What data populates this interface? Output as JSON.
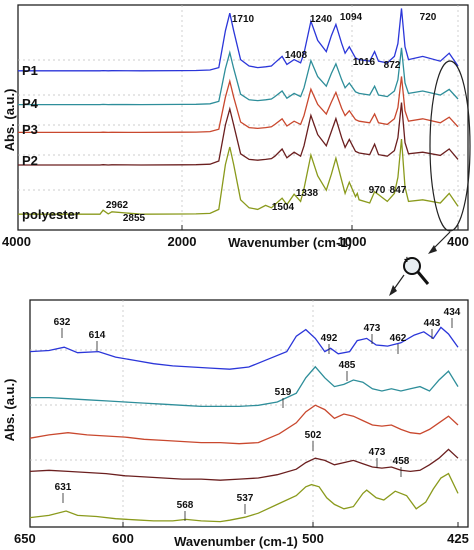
{
  "colors": {
    "P1": "#2b36d9",
    "P4": "#2e8e9a",
    "P3": "#c9482e",
    "P2": "#6b1f1f",
    "polyester": "#8a9a1c"
  },
  "chart_data": [
    {
      "type": "line",
      "title": "",
      "xlabel": "Wavenumber (cm-1)",
      "ylabel": "Abs. (a.u.)",
      "xlim": [
        4000,
        400
      ],
      "x_reversed": true,
      "x_ticks": [
        "4000",
        "2000",
        "1000",
        "400"
      ],
      "grid": true,
      "series": [
        {
          "name": "P1",
          "x": [
            4000,
            3500,
            3000,
            2962,
            2900,
            2855,
            2500,
            2000,
            1900,
            1800,
            1760,
            1730,
            1710,
            1690,
            1650,
            1600,
            1550,
            1504,
            1470,
            1450,
            1408,
            1380,
            1338,
            1300,
            1280,
            1240,
            1200,
            1150,
            1120,
            1094,
            1060,
            1040,
            1016,
            980,
            960,
            900,
            872,
            850,
            800,
            760,
            740,
            720,
            700,
            680,
            600,
            500,
            450,
            400
          ],
          "y": [
            0.7,
            0.7,
            0.7,
            0.71,
            0.7,
            0.705,
            0.7,
            0.71,
            0.72,
            0.75,
            0.9,
            3.2,
            4.3,
            3.2,
            1.4,
            1.0,
            0.9,
            0.95,
            1.0,
            1.2,
            1.6,
            1.1,
            1.4,
            1.2,
            1.8,
            3.8,
            2.6,
            1.9,
            2.9,
            3.6,
            2.4,
            1.8,
            2.2,
            1.5,
            1.4,
            1.3,
            1.9,
            1.3,
            1.2,
            1.6,
            2.4,
            4.6,
            2.2,
            1.4,
            1.6,
            1.3,
            1.8,
            1.0
          ]
        },
        {
          "name": "P4",
          "x": [
            4000,
            3500,
            3000,
            2962,
            2900,
            2855,
            2500,
            2000,
            1900,
            1800,
            1760,
            1730,
            1710,
            1690,
            1650,
            1600,
            1550,
            1504,
            1470,
            1450,
            1408,
            1380,
            1338,
            1300,
            1280,
            1240,
            1200,
            1150,
            1120,
            1094,
            1060,
            1040,
            1016,
            980,
            960,
            900,
            872,
            850,
            800,
            760,
            740,
            720,
            700,
            680,
            600,
            500,
            450,
            400
          ],
          "y": [
            0.65,
            0.65,
            0.65,
            0.66,
            0.65,
            0.655,
            0.65,
            0.66,
            0.67,
            0.7,
            0.85,
            2.9,
            3.9,
            2.9,
            1.3,
            0.95,
            0.9,
            0.95,
            1.0,
            1.15,
            1.5,
            1.05,
            1.35,
            1.15,
            1.7,
            3.4,
            2.4,
            1.8,
            2.6,
            3.2,
            2.2,
            1.7,
            2.0,
            1.45,
            1.35,
            1.25,
            1.8,
            1.25,
            1.15,
            1.5,
            2.2,
            4.2,
            2.0,
            1.35,
            1.5,
            1.25,
            1.6,
            1.0
          ]
        },
        {
          "name": "P3",
          "x": [
            4000,
            3500,
            3000,
            2962,
            2900,
            2855,
            2500,
            2000,
            1900,
            1800,
            1760,
            1730,
            1710,
            1690,
            1650,
            1600,
            1550,
            1504,
            1470,
            1450,
            1408,
            1380,
            1338,
            1300,
            1280,
            1240,
            1200,
            1150,
            1120,
            1094,
            1060,
            1040,
            1016,
            980,
            960,
            900,
            872,
            850,
            800,
            760,
            740,
            720,
            700,
            680,
            600,
            500,
            450,
            400
          ],
          "y": [
            0.6,
            0.6,
            0.6,
            0.61,
            0.6,
            0.605,
            0.6,
            0.61,
            0.62,
            0.65,
            0.8,
            2.8,
            3.8,
            2.8,
            1.25,
            0.9,
            0.85,
            0.9,
            0.95,
            1.1,
            1.45,
            1.0,
            1.3,
            1.1,
            1.65,
            3.3,
            2.35,
            1.75,
            2.5,
            3.1,
            2.1,
            1.65,
            1.95,
            1.4,
            1.3,
            1.2,
            1.75,
            1.2,
            1.1,
            1.45,
            2.15,
            4.1,
            1.95,
            1.3,
            1.45,
            1.2,
            1.55,
            0.95
          ]
        },
        {
          "name": "P2",
          "x": [
            4000,
            3500,
            3000,
            2962,
            2900,
            2855,
            2500,
            2000,
            1900,
            1800,
            1760,
            1730,
            1710,
            1690,
            1650,
            1600,
            1550,
            1504,
            1470,
            1450,
            1408,
            1380,
            1338,
            1300,
            1280,
            1240,
            1200,
            1150,
            1120,
            1094,
            1060,
            1040,
            1016,
            980,
            960,
            900,
            872,
            850,
            800,
            760,
            740,
            720,
            700,
            680,
            600,
            500,
            450,
            400
          ],
          "y": [
            0.5,
            0.5,
            0.5,
            0.52,
            0.5,
            0.51,
            0.5,
            0.51,
            0.52,
            0.55,
            0.75,
            3.0,
            4.0,
            3.0,
            1.2,
            0.85,
            0.8,
            0.85,
            0.9,
            1.05,
            1.5,
            0.95,
            1.3,
            1.05,
            1.7,
            3.6,
            2.4,
            1.7,
            2.6,
            3.4,
            2.2,
            1.6,
            2.1,
            1.35,
            1.25,
            1.15,
            1.8,
            1.15,
            1.05,
            1.4,
            2.2,
            4.4,
            1.9,
            1.2,
            1.3,
            1.1,
            1.5,
            0.85
          ]
        },
        {
          "name": "polyester",
          "x": [
            4000,
            3500,
            3000,
            2962,
            2900,
            2855,
            2500,
            2000,
            1900,
            1800,
            1760,
            1730,
            1710,
            1690,
            1650,
            1600,
            1550,
            1504,
            1470,
            1450,
            1408,
            1380,
            1338,
            1300,
            1280,
            1240,
            1200,
            1150,
            1120,
            1094,
            1060,
            1040,
            1016,
            980,
            970,
            960,
            900,
            872,
            847,
            800,
            760,
            740,
            720,
            700,
            680,
            600,
            500,
            450,
            400
          ],
          "y": [
            0.3,
            0.3,
            0.3,
            0.55,
            0.32,
            0.45,
            0.3,
            0.31,
            0.32,
            0.35,
            0.6,
            3.4,
            4.5,
            3.4,
            1.2,
            0.7,
            0.6,
            0.85,
            0.7,
            0.9,
            1.3,
            0.9,
            1.55,
            1.1,
            1.9,
            4.0,
            2.7,
            1.8,
            2.8,
            3.8,
            2.4,
            1.6,
            2.3,
            1.4,
            1.6,
            1.2,
            1.0,
            1.7,
            1.5,
            1.1,
            1.6,
            2.6,
            5.0,
            2.0,
            1.1,
            1.2,
            1.0,
            1.6,
            0.8
          ]
        }
      ],
      "annotations": [
        "1710",
        "1240",
        "1094",
        "1408",
        "1016",
        "872",
        "720",
        "2962",
        "2855",
        "1504",
        "1338",
        "970",
        "847"
      ]
    },
    {
      "type": "line",
      "title": "",
      "xlabel": "Wavenumber (cm-1)",
      "ylabel": "Abs. (a.u.)",
      "xlim": [
        650,
        425
      ],
      "x_reversed": true,
      "x_ticks": [
        "650",
        "600",
        "500",
        "425"
      ],
      "grid": true,
      "series": [
        {
          "name": "P1",
          "x": [
            650,
            640,
            632,
            625,
            614,
            605,
            595,
            585,
            575,
            565,
            555,
            545,
            535,
            525,
            515,
            510,
            505,
            500,
            495,
            492,
            488,
            482,
            478,
            473,
            468,
            462,
            455,
            448,
            443,
            438,
            434,
            430,
            425
          ],
          "y": [
            3.7,
            3.75,
            3.9,
            3.65,
            3.7,
            3.45,
            3.3,
            3.15,
            3.05,
            3.0,
            2.95,
            2.9,
            3.0,
            3.35,
            3.7,
            4.4,
            4.7,
            4.3,
            3.7,
            3.85,
            3.6,
            3.7,
            4.2,
            4.3,
            4.0,
            3.95,
            4.1,
            4.45,
            4.6,
            4.3,
            4.8,
            4.5,
            3.9
          ]
        },
        {
          "name": "P4",
          "x": [
            650,
            640,
            630,
            620,
            610,
            600,
            590,
            580,
            570,
            560,
            550,
            540,
            530,
            520,
            510,
            505,
            500,
            495,
            490,
            485,
            480,
            475,
            470,
            465,
            460,
            455,
            450,
            445,
            440,
            435,
            430,
            425
          ],
          "y": [
            2.7,
            2.7,
            2.65,
            2.6,
            2.55,
            2.5,
            2.45,
            2.4,
            2.35,
            2.3,
            2.3,
            2.3,
            2.35,
            2.5,
            2.9,
            3.6,
            4.1,
            3.6,
            3.2,
            3.3,
            3.5,
            3.4,
            3.1,
            3.0,
            3.1,
            3.0,
            3.1,
            3.2,
            3.0,
            3.5,
            3.9,
            3.2
          ]
        },
        {
          "name": "P3",
          "x": [
            650,
            640,
            630,
            620,
            610,
            600,
            590,
            580,
            570,
            560,
            550,
            540,
            530,
            519,
            510,
            505,
            500,
            495,
            490,
            485,
            480,
            475,
            470,
            465,
            460,
            455,
            450,
            445,
            440,
            435,
            430,
            425
          ],
          "y": [
            1.9,
            2.05,
            2.15,
            2.05,
            2.0,
            1.95,
            1.85,
            1.8,
            1.75,
            1.7,
            1.7,
            1.65,
            1.7,
            2.1,
            2.6,
            3.1,
            3.4,
            3.2,
            2.8,
            3.0,
            2.9,
            2.7,
            2.5,
            2.45,
            2.5,
            2.3,
            2.15,
            2.1,
            2.3,
            2.6,
            2.9,
            2.5
          ]
        },
        {
          "name": "P2",
          "x": [
            650,
            640,
            630,
            620,
            610,
            600,
            590,
            580,
            570,
            560,
            550,
            540,
            530,
            520,
            510,
            505,
            500,
            495,
            490,
            485,
            480,
            475,
            470,
            465,
            460,
            455,
            450,
            445,
            440,
            435,
            430,
            425
          ],
          "y": [
            1.3,
            1.35,
            1.3,
            1.25,
            1.2,
            1.1,
            1.05,
            1.0,
            0.95,
            0.95,
            0.9,
            0.95,
            1.0,
            1.15,
            1.4,
            1.7,
            1.9,
            1.8,
            1.6,
            1.7,
            1.8,
            1.65,
            1.5,
            1.45,
            1.5,
            1.35,
            1.3,
            1.35,
            1.6,
            1.9,
            2.3,
            1.9
          ]
        },
        {
          "name": "polyester",
          "x": [
            650,
            640,
            631,
            625,
            615,
            605,
            595,
            585,
            575,
            568,
            560,
            550,
            545,
            537,
            530,
            520,
            510,
            505,
            502,
            498,
            494,
            490,
            485,
            480,
            475,
            473,
            468,
            464,
            458,
            452,
            447,
            442,
            438,
            434,
            430,
            425
          ],
          "y": [
            0.2,
            0.3,
            0.5,
            0.3,
            0.25,
            0.15,
            0.1,
            0.05,
            0.05,
            0.12,
            0.05,
            0.02,
            0.08,
            0.22,
            0.4,
            0.8,
            1.2,
            1.6,
            1.7,
            1.6,
            1.1,
            0.8,
            0.6,
            0.7,
            1.3,
            1.45,
            1.1,
            1.0,
            1.4,
            1.2,
            0.6,
            0.9,
            1.5,
            2.0,
            2.2,
            1.3
          ]
        }
      ],
      "annotations": [
        "632",
        "614",
        "492",
        "473",
        "462",
        "443",
        "434",
        "519",
        "485",
        "502",
        "473",
        "458",
        "631",
        "568",
        "537"
      ]
    }
  ],
  "labels": {
    "series_names": [
      "P1",
      "P4",
      "P3",
      "P2",
      "polyester"
    ]
  }
}
